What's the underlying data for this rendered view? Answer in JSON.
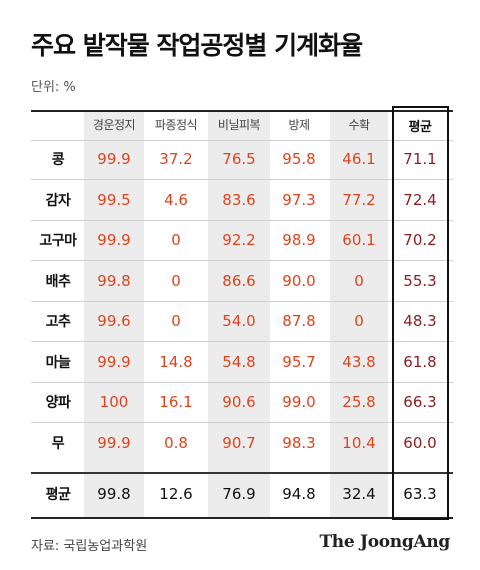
{
  "title": "주요 밭작물 작업공정별 기계화율",
  "unit": "단위: %",
  "source": "자료: 국립농업과학원",
  "brand": "The JoongAng",
  "colors": {
    "value_orange": "#e0431c",
    "value_avg": "#8c1f22",
    "shade": "#ececec"
  },
  "chart_data": {
    "type": "table",
    "columns": [
      "경운정지",
      "파종정식",
      "비닐피복",
      "방제",
      "수확",
      "평균"
    ],
    "rows": [
      {
        "label": "콩",
        "values": [
          "99.9",
          "37.2",
          "76.5",
          "95.8",
          "46.1",
          "71.1"
        ]
      },
      {
        "label": "감자",
        "values": [
          "99.5",
          "4.6",
          "83.6",
          "97.3",
          "77.2",
          "72.4"
        ]
      },
      {
        "label": "고구마",
        "values": [
          "99.9",
          "0",
          "92.2",
          "98.9",
          "60.1",
          "70.2"
        ]
      },
      {
        "label": "배추",
        "values": [
          "99.8",
          "0",
          "86.6",
          "90.0",
          "0",
          "55.3"
        ]
      },
      {
        "label": "고추",
        "values": [
          "99.6",
          "0",
          "54.0",
          "87.8",
          "0",
          "48.3"
        ]
      },
      {
        "label": "마늘",
        "values": [
          "99.9",
          "14.8",
          "54.8",
          "95.7",
          "43.8",
          "61.8"
        ]
      },
      {
        "label": "양파",
        "values": [
          "100",
          "16.1",
          "90.6",
          "99.0",
          "25.8",
          "66.3"
        ]
      },
      {
        "label": "무",
        "values": [
          "99.9",
          "0.8",
          "90.7",
          "98.3",
          "10.4",
          "60.0"
        ]
      }
    ],
    "total_row": {
      "label": "평균",
      "values": [
        "99.8",
        "12.6",
        "76.9",
        "94.8",
        "32.4",
        "63.3"
      ]
    }
  }
}
